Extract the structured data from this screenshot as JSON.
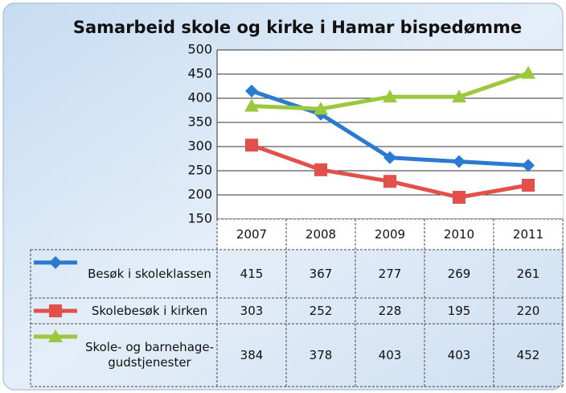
{
  "chart_data": {
    "type": "line",
    "title": "Samarbeid skole og kirke i Hamar bispedømme",
    "categories": [
      "2007",
      "2008",
      "2009",
      "2010",
      "2011"
    ],
    "series": [
      {
        "name": "Besøk i skoleklassen",
        "color": "#2a7bd0",
        "marker": "diamond",
        "values": [
          415,
          367,
          277,
          269,
          261
        ]
      },
      {
        "name": "Skolebesøk i kirken",
        "color": "#e2504c",
        "marker": "square",
        "values": [
          303,
          252,
          228,
          195,
          220
        ]
      },
      {
        "name": "Skole- og barnehage-gudstjenester",
        "color": "#9bc83c",
        "marker": "triangle",
        "values": [
          384,
          378,
          403,
          403,
          452
        ]
      }
    ],
    "ylim": [
      150,
      500
    ],
    "yticks": [
      150,
      200,
      250,
      300,
      350,
      400,
      450,
      500
    ],
    "grid": true,
    "data_table": true
  }
}
